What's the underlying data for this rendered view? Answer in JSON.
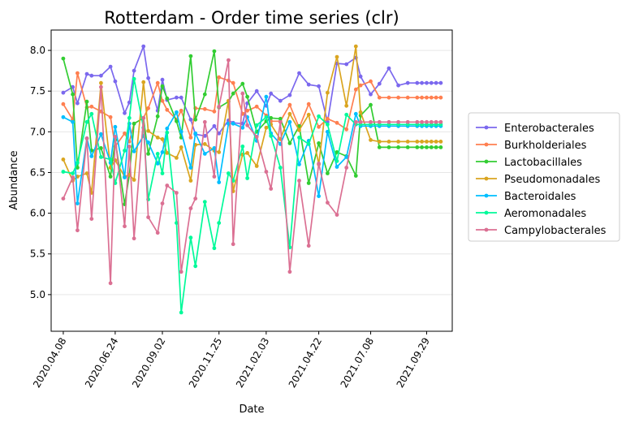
{
  "chart_data": {
    "type": "line",
    "title": "Rotterdam - Order time series (clr)",
    "xlabel": "Date",
    "ylabel": "Abundance",
    "ylim": [
      4.55,
      8.25
    ],
    "yticks": [
      5.0,
      5.5,
      6.0,
      6.5,
      7.0,
      7.5,
      8.0
    ],
    "xticks": [
      "2020.04.08",
      "2020.06.24",
      "2020.09.02",
      "2020.11.25",
      "2021.02.03",
      "2021.04.22",
      "2021.07.08",
      "2021.09.29"
    ],
    "grid": "horizontal",
    "legend_position": "right",
    "x": [
      "2020-04-08",
      "2020-04-22",
      "2020-04-29",
      "2020-05-13",
      "2020-05-20",
      "2020-06-03",
      "2020-06-17",
      "2020-06-24",
      "2020-07-08",
      "2020-07-15",
      "2020-07-22",
      "2020-08-05",
      "2020-08-12",
      "2020-08-26",
      "2020-09-02",
      "2020-09-09",
      "2020-09-23",
      "2020-09-30",
      "2020-10-14",
      "2020-10-21",
      "2020-11-04",
      "2020-11-18",
      "2020-11-25",
      "2020-12-09",
      "2020-12-16",
      "2020-12-30",
      "2021-01-06",
      "2021-01-20",
      "2021-02-03",
      "2021-02-10",
      "2021-02-24",
      "2021-03-10",
      "2021-03-24",
      "2021-04-07",
      "2021-04-22",
      "2021-05-05",
      "2021-05-19",
      "2021-06-02",
      "2021-06-16",
      "2021-06-23",
      "2021-07-08",
      "2021-07-21",
      "2021-08-04",
      "2021-08-18",
      "2021-09-01",
      "2021-09-15",
      "2021-09-22",
      "2021-09-29",
      "2021-10-06",
      "2021-10-13",
      "2021-10-20"
    ],
    "series": [
      {
        "name": "Enterobacterales",
        "color": "#7b68ee",
        "values": [
          7.48,
          7.55,
          7.35,
          7.71,
          7.69,
          7.69,
          7.8,
          7.62,
          7.23,
          7.36,
          7.75,
          8.05,
          7.66,
          7.26,
          7.64,
          7.39,
          7.42,
          7.42,
          7.15,
          6.97,
          6.95,
          7.07,
          6.98,
          7.14,
          7.11,
          7.1,
          7.35,
          7.5,
          7.32,
          7.47,
          7.38,
          7.45,
          7.72,
          7.58,
          7.56,
          7.12,
          7.84,
          7.83,
          7.91,
          7.68,
          7.46,
          7.59,
          7.78,
          7.57,
          7.6,
          7.6,
          7.6,
          7.6,
          7.6,
          7.6,
          7.6
        ]
      },
      {
        "name": "Burkholderiales",
        "color": "#ff7f50",
        "values": [
          7.34,
          7.15,
          7.72,
          7.3,
          7.31,
          7.25,
          7.18,
          6.82,
          6.98,
          6.88,
          7.1,
          7.17,
          7.29,
          7.6,
          7.38,
          7.27,
          7.15,
          7.26,
          6.93,
          7.29,
          7.28,
          7.25,
          7.67,
          7.63,
          7.6,
          7.22,
          7.26,
          7.31,
          7.2,
          7.13,
          7.13,
          7.33,
          7.05,
          7.34,
          7.06,
          7.16,
          7.11,
          7.03,
          7.52,
          7.57,
          7.62,
          7.42,
          7.42,
          7.42,
          7.42,
          7.42,
          7.42,
          7.42,
          7.42,
          7.42,
          7.42
        ]
      },
      {
        "name": "Lactobacillales",
        "color": "#32cd32",
        "values": [
          7.9,
          7.46,
          6.56,
          7.37,
          6.77,
          6.8,
          6.45,
          6.9,
          6.11,
          6.47,
          7.1,
          7.17,
          6.73,
          7.19,
          7.56,
          7.41,
          7.13,
          6.93,
          7.93,
          7.15,
          7.46,
          7.99,
          7.3,
          7.37,
          7.47,
          7.59,
          7.43,
          7.0,
          7.13,
          7.17,
          7.16,
          6.86,
          7.07,
          6.37,
          6.86,
          6.49,
          6.75,
          6.7,
          6.46,
          7.2,
          7.33,
          6.81,
          6.81,
          6.81,
          6.81,
          6.81,
          6.81,
          6.81,
          6.81,
          6.81,
          6.81
        ]
      },
      {
        "name": "Pseudomonadales",
        "color": "#daa520",
        "values": [
          6.66,
          6.4,
          6.45,
          6.49,
          6.25,
          7.6,
          6.56,
          6.65,
          6.45,
          6.47,
          6.41,
          7.61,
          7.01,
          6.93,
          6.91,
          6.74,
          6.68,
          6.81,
          6.4,
          6.84,
          6.85,
          6.77,
          6.75,
          7.38,
          6.27,
          6.72,
          6.74,
          6.58,
          7.05,
          7.09,
          6.91,
          7.22,
          7.02,
          7.21,
          6.6,
          7.48,
          7.92,
          7.32,
          8.05,
          7.24,
          6.9,
          6.88,
          6.88,
          6.88,
          6.88,
          6.88,
          6.88,
          6.88,
          6.88,
          6.88,
          6.88
        ]
      },
      {
        "name": "Bacteroidales",
        "color": "#00bfff",
        "values": [
          7.18,
          7.12,
          6.12,
          6.92,
          6.7,
          6.97,
          6.62,
          7.06,
          6.44,
          7.1,
          6.76,
          6.95,
          6.87,
          6.61,
          6.75,
          7.04,
          7.24,
          7.0,
          6.56,
          6.98,
          6.73,
          6.8,
          6.38,
          7.1,
          7.1,
          7.05,
          7.18,
          6.89,
          7.43,
          6.98,
          6.85,
          7.12,
          6.6,
          6.89,
          6.21,
          7.0,
          6.57,
          6.69,
          7.22,
          7.07,
          7.07,
          7.07,
          7.07,
          7.07,
          7.07,
          7.07,
          7.07,
          7.07,
          7.07,
          7.07,
          7.07
        ]
      },
      {
        "name": "Aeromonadales",
        "color": "#00fa9a",
        "values": [
          6.51,
          6.49,
          6.62,
          7.12,
          7.22,
          6.69,
          6.66,
          6.37,
          6.77,
          7.17,
          7.65,
          7.05,
          6.17,
          6.73,
          6.49,
          6.99,
          5.88,
          4.78,
          5.7,
          5.35,
          6.14,
          5.57,
          5.88,
          6.49,
          6.4,
          6.82,
          6.43,
          7.08,
          7.18,
          6.95,
          6.56,
          5.58,
          6.93,
          6.85,
          7.19,
          7.09,
          6.64,
          7.21,
          7.09,
          7.09,
          7.09,
          7.09,
          7.09,
          7.09,
          7.09,
          7.09,
          7.09,
          7.09,
          7.09,
          7.09,
          7.09
        ]
      },
      {
        "name": "Campylobacterales",
        "color": "#db7093",
        "values": [
          6.18,
          6.44,
          5.79,
          6.92,
          5.93,
          7.55,
          5.14,
          6.94,
          5.84,
          6.82,
          5.69,
          7.17,
          5.95,
          5.76,
          6.12,
          6.34,
          6.25,
          5.28,
          6.06,
          6.18,
          7.12,
          6.45,
          7.31,
          7.88,
          5.62,
          7.47,
          7.08,
          6.94,
          6.51,
          6.3,
          7.12,
          5.28,
          6.4,
          5.6,
          6.61,
          6.13,
          5.98,
          6.56,
          7.12,
          7.12,
          7.12,
          7.12,
          7.12,
          7.12,
          7.12,
          7.12,
          7.12,
          7.12,
          7.12,
          7.12,
          7.12
        ]
      }
    ]
  }
}
